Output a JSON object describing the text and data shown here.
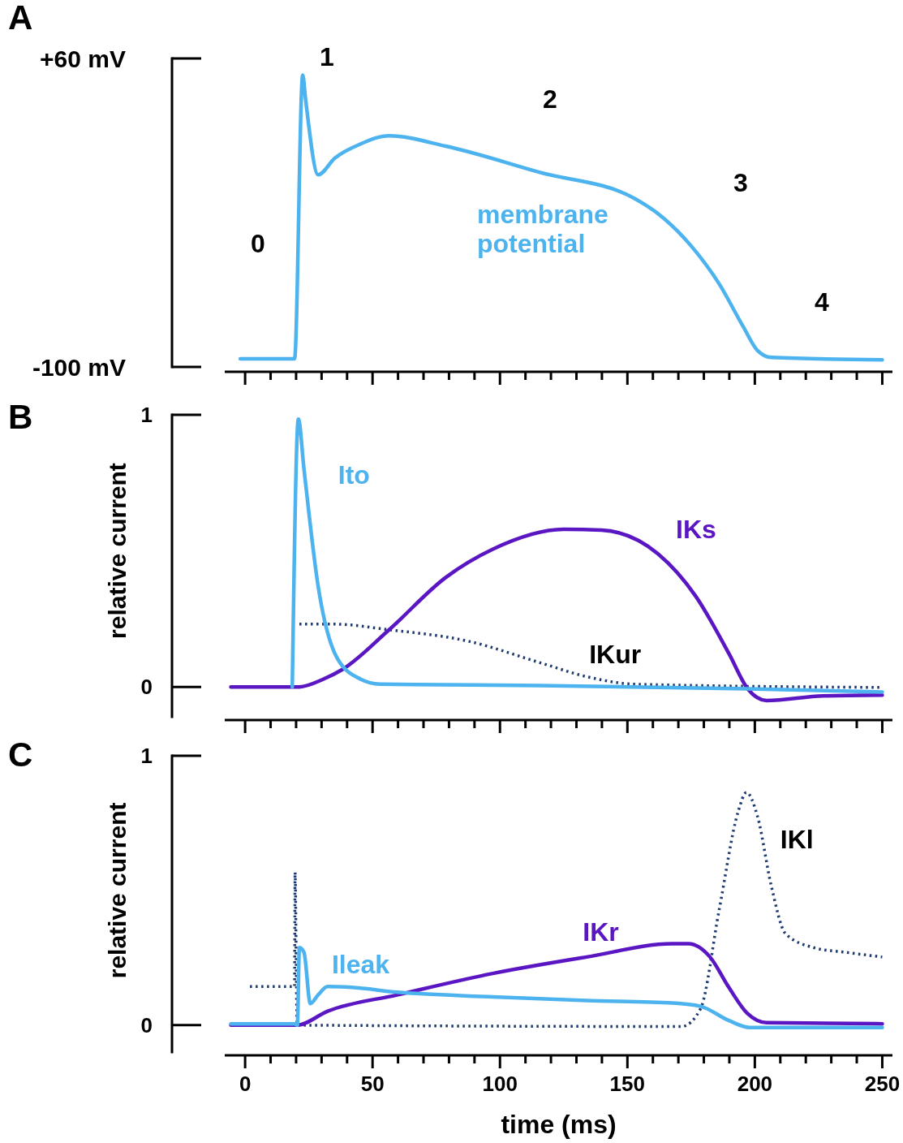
{
  "chart_data": [
    {
      "type": "line",
      "title": "A",
      "xlim": [
        -8,
        254
      ],
      "xticks": [
        0,
        {
          "value": 10,
          "label": null
        },
        {
          "value": 20,
          "label": null
        },
        {
          "value": 30,
          "label": null
        },
        {
          "value": 40,
          "label": null
        },
        50,
        {
          "value": 60,
          "label": null
        },
        {
          "value": 70,
          "label": null
        },
        {
          "value": 80,
          "label": null
        },
        {
          "value": 90,
          "label": null
        },
        100,
        {
          "value": 110,
          "label": null
        },
        {
          "value": 120,
          "label": null
        },
        {
          "value": 130,
          "label": null
        },
        {
          "value": 140,
          "label": null
        },
        150,
        {
          "value": 160,
          "label": null
        },
        {
          "value": 170,
          "label": null
        },
        {
          "value": 180,
          "label": null
        },
        {
          "value": 190,
          "label": null
        },
        200,
        {
          "value": 210,
          "label": null
        },
        {
          "value": 220,
          "label": null
        },
        {
          "value": 230,
          "label": null
        },
        {
          "value": 240,
          "label": null
        },
        250
      ],
      "ylim": [
        -100,
        60
      ],
      "yticks": [
        {
          "value": -100,
          "label": "-100 mV"
        },
        {
          "value": 60,
          "label": "+60 mV"
        }
      ],
      "tick_labels": "y",
      "line_style": "solid",
      "series": [
        {
          "name": "membrane potential",
          "color": "#4db3ee",
          "x": [
            -1.9,
            19.4,
            22.6,
            23.7,
            28.7,
            35.2,
            45.4,
            56.5,
            78.7,
            115.7,
            152.8,
            163.9,
            175,
            186,
            195.4,
            201,
            206.5,
            250
          ],
          "values": [
            -95.8,
            -95.8,
            51.4,
            39,
            -0.3,
            8.3,
            15.7,
            19.9,
            14.5,
            0.9,
            -12.6,
            -22.5,
            -37.2,
            -56.9,
            -79,
            -91.4,
            -95.1,
            -96.3
          ]
        }
      ],
      "annotations": [
        "0",
        "1",
        "2",
        "3",
        "4"
      ]
    },
    {
      "type": "line",
      "title": "B",
      "ylabel": "relative current",
      "xlim": [
        -8,
        254
      ],
      "xticks": [
        0,
        {
          "value": 10,
          "label": null
        },
        {
          "value": 20,
          "label": null
        },
        {
          "value": 30,
          "label": null
        },
        {
          "value": 40,
          "label": null
        },
        50,
        {
          "value": 60,
          "label": null
        },
        {
          "value": 70,
          "label": null
        },
        {
          "value": 80,
          "label": null
        },
        {
          "value": 90,
          "label": null
        },
        100,
        {
          "value": 110,
          "label": null
        },
        {
          "value": 120,
          "label": null
        },
        {
          "value": 130,
          "label": null
        },
        {
          "value": 140,
          "label": null
        },
        150,
        {
          "value": 160,
          "label": null
        },
        {
          "value": 170,
          "label": null
        },
        {
          "value": 180,
          "label": null
        },
        {
          "value": 190,
          "label": null
        },
        200,
        {
          "value": 210,
          "label": null
        },
        {
          "value": 220,
          "label": null
        },
        {
          "value": 230,
          "label": null
        },
        {
          "value": 240,
          "label": null
        },
        250
      ],
      "ylim": [
        -0.11,
        1
      ],
      "yticks": [
        {
          "value": 0,
          "label": "0"
        },
        {
          "value": 1,
          "label": "1"
        }
      ],
      "tick_labels": "y",
      "line_style": "solid",
      "series": [
        {
          "name": "IKur",
          "color": "#1c3a6e",
          "line_style": "dotted",
          "x": [
            21.3,
            34.3,
            56.5,
            88,
            115.7,
            134.3,
            152.8,
            250
          ],
          "values": [
            0.231,
            0.231,
            0.21,
            0.167,
            0.089,
            0.037,
            0.01,
            -0.002
          ]
        },
        {
          "name": "IKs",
          "color": "#5b16c4",
          "x": [
            -5.6,
            21.3,
            30.6,
            38,
            56.5,
            78.7,
            97.2,
            125,
            139.8,
            162,
            176.9,
            189.8,
            197.2,
            204.6,
            226.9,
            250
          ],
          "values": [
            0,
            0,
            0.028,
            0.063,
            0.21,
            0.402,
            0.506,
            0.579,
            0.576,
            0.489,
            0.332,
            0.123,
            -0.007,
            -0.05,
            -0.033,
            -0.03
          ]
        },
        {
          "name": "Ito",
          "color": "#4db3ee",
          "x": [
            18.5,
            20.9,
            23.1,
            28.7,
            36.1,
            45.4,
            52.8,
            115.7,
            197.2,
            250
          ],
          "values": [
            0,
            0.984,
            0.8,
            0.367,
            0.106,
            0.028,
            0.01,
            0.005,
            -0.007,
            -0.019
          ]
        }
      ]
    },
    {
      "type": "line",
      "title": "C",
      "ylabel": "relative current",
      "xlabel": "time (ms)",
      "xlim": [
        -8,
        254
      ],
      "xticks": [
        0,
        {
          "value": 10,
          "label": null
        },
        {
          "value": 20,
          "label": null
        },
        {
          "value": 30,
          "label": null
        },
        {
          "value": 40,
          "label": null
        },
        50,
        {
          "value": 60,
          "label": null
        },
        {
          "value": 70,
          "label": null
        },
        {
          "value": 80,
          "label": null
        },
        {
          "value": 90,
          "label": null
        },
        100,
        {
          "value": 110,
          "label": null
        },
        {
          "value": 120,
          "label": null
        },
        {
          "value": 130,
          "label": null
        },
        {
          "value": 140,
          "label": null
        },
        150,
        {
          "value": 160,
          "label": null
        },
        {
          "value": 170,
          "label": null
        },
        {
          "value": 180,
          "label": null
        },
        {
          "value": 190,
          "label": null
        },
        200,
        {
          "value": 210,
          "label": null
        },
        {
          "value": 220,
          "label": null
        },
        {
          "value": 230,
          "label": null
        },
        {
          "value": 240,
          "label": null
        },
        250
      ],
      "ylim": [
        -0.1,
        1
      ],
      "yticks": [
        {
          "value": 0,
          "label": "0"
        },
        {
          "value": 1,
          "label": "1"
        }
      ],
      "line_style": "solid",
      "series": [
        {
          "name": "IKl",
          "color": "#1c3a6e",
          "line_style": "dotted",
          "x": [
            1.9,
            19.4,
            19.6,
            20.4,
            171.3,
            178.7,
            186,
            193.5,
            196.7,
            201,
            206.5,
            212,
            223,
            236,
            250
          ],
          "values": [
            0.143,
            0.143,
            0.567,
            0,
            -0.005,
            0.061,
            0.428,
            0.794,
            0.864,
            0.777,
            0.515,
            0.34,
            0.288,
            0.27,
            0.253
          ]
        },
        {
          "name": "IKr",
          "color": "#5b16c4",
          "x": [
            -5.6,
            20.4,
            32.4,
            60,
            97.2,
            134,
            167.6,
            174,
            182.4,
            189.8,
            197,
            204.6,
            250
          ],
          "values": [
            0,
            0,
            0.052,
            0.113,
            0.192,
            0.253,
            0.302,
            0.302,
            0.253,
            0.14,
            0.044,
            0.009,
            0.005
          ]
        },
        {
          "name": "Ileak",
          "color": "#4db3ee",
          "x": [
            -5.6,
            19.4,
            20.5,
            21.3,
            23.1,
            25.6,
            28.7,
            32.4,
            41.7,
            60,
            97.2,
            134,
            167.6,
            178.7,
            189.8,
            198,
            250
          ],
          "values": [
            0.005,
            0.005,
            0,
            0.288,
            0.27,
            0.08,
            0.113,
            0.143,
            0.14,
            0.122,
            0.105,
            0.091,
            0.082,
            0.07,
            0.017,
            -0.009,
            -0.009
          ]
        }
      ]
    }
  ]
}
